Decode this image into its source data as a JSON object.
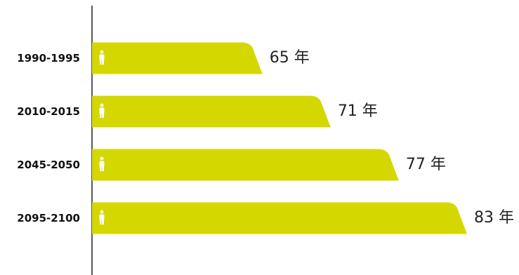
{
  "chart_data": {
    "type": "bar",
    "orientation": "horizontal",
    "categories": [
      "1990-1995",
      "2010-2015",
      "2045-2050",
      "2095-2100"
    ],
    "values": [
      65,
      71,
      77,
      83
    ],
    "value_suffix": " 年",
    "value_labels": [
      "65 年",
      "71 年",
      "77 年",
      "83 年"
    ],
    "xlim": [
      50,
      83
    ],
    "bar_color": "#d4d800",
    "icon": "person-icon",
    "grid": false,
    "legend": "none"
  }
}
